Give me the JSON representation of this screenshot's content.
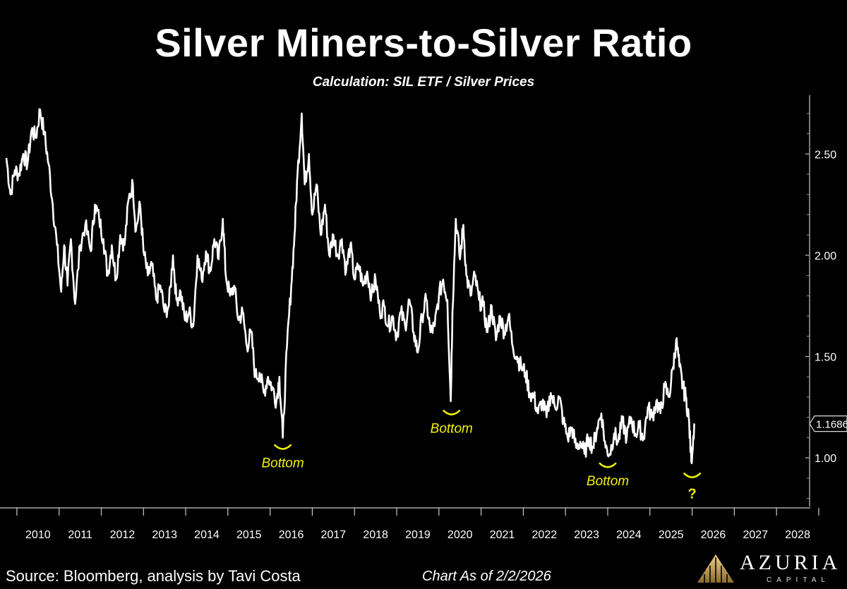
{
  "chart_data": {
    "type": "line",
    "title": "Silver Miners-to-Silver Ratio",
    "subtitle": "Calculation: SIL ETF / Silver Prices",
    "xlabel": "",
    "ylabel": "",
    "x_ticks": [
      "2010",
      "2011",
      "2012",
      "2013",
      "2014",
      "2015",
      "2016",
      "2017",
      "2018",
      "2019",
      "2020",
      "2021",
      "2022",
      "2023",
      "2024",
      "2025",
      "2026",
      "2027",
      "2028"
    ],
    "y_ticks": [
      "1.00",
      "1.50",
      "2.00",
      "2.50"
    ],
    "ylim": [
      0.76,
      2.79
    ],
    "xlim": [
      2009.6,
      2028.8
    ],
    "grid": false,
    "last_value_label": "1.1686",
    "series": [
      {
        "color": "#ffffff",
        "points": [
          [
            2009.75,
            2.48
          ],
          [
            2009.85,
            2.3
          ],
          [
            2009.95,
            2.42
          ],
          [
            2010.05,
            2.4
          ],
          [
            2010.15,
            2.5
          ],
          [
            2010.25,
            2.45
          ],
          [
            2010.35,
            2.62
          ],
          [
            2010.45,
            2.58
          ],
          [
            2010.55,
            2.72
          ],
          [
            2010.65,
            2.6
          ],
          [
            2010.75,
            2.45
          ],
          [
            2010.85,
            2.25
          ],
          [
            2010.95,
            2.05
          ],
          [
            2011.05,
            1.82
          ],
          [
            2011.12,
            2.05
          ],
          [
            2011.2,
            1.85
          ],
          [
            2011.28,
            2.08
          ],
          [
            2011.38,
            1.76
          ],
          [
            2011.5,
            2.05
          ],
          [
            2011.62,
            2.15
          ],
          [
            2011.75,
            2.02
          ],
          [
            2011.85,
            2.25
          ],
          [
            2011.95,
            2.18
          ],
          [
            2012.05,
            2.08
          ],
          [
            2012.15,
            1.9
          ],
          [
            2012.25,
            2.05
          ],
          [
            2012.35,
            1.88
          ],
          [
            2012.45,
            2.1
          ],
          [
            2012.55,
            2.05
          ],
          [
            2012.65,
            2.28
          ],
          [
            2012.75,
            2.35
          ],
          [
            2012.82,
            2.12
          ],
          [
            2012.92,
            2.25
          ],
          [
            2013.0,
            2.02
          ],
          [
            2013.1,
            1.9
          ],
          [
            2013.2,
            1.95
          ],
          [
            2013.3,
            1.78
          ],
          [
            2013.4,
            1.85
          ],
          [
            2013.5,
            1.72
          ],
          [
            2013.6,
            1.75
          ],
          [
            2013.7,
            2.0
          ],
          [
            2013.78,
            1.78
          ],
          [
            2013.88,
            1.82
          ],
          [
            2013.98,
            1.68
          ],
          [
            2014.08,
            1.72
          ],
          [
            2014.18,
            1.65
          ],
          [
            2014.28,
            2.0
          ],
          [
            2014.38,
            1.88
          ],
          [
            2014.48,
            2.02
          ],
          [
            2014.58,
            1.92
          ],
          [
            2014.68,
            2.08
          ],
          [
            2014.78,
            1.98
          ],
          [
            2014.88,
            2.18
          ],
          [
            2014.95,
            1.9
          ],
          [
            2015.05,
            1.8
          ],
          [
            2015.15,
            1.85
          ],
          [
            2015.25,
            1.68
          ],
          [
            2015.35,
            1.72
          ],
          [
            2015.45,
            1.55
          ],
          [
            2015.55,
            1.62
          ],
          [
            2015.65,
            1.4
          ],
          [
            2015.75,
            1.42
          ],
          [
            2015.85,
            1.32
          ],
          [
            2015.95,
            1.4
          ],
          [
            2016.05,
            1.35
          ],
          [
            2016.15,
            1.28
          ],
          [
            2016.22,
            1.4
          ],
          [
            2016.3,
            1.1
          ],
          [
            2016.4,
            1.55
          ],
          [
            2016.5,
            1.85
          ],
          [
            2016.58,
            2.1
          ],
          [
            2016.65,
            2.4
          ],
          [
            2016.75,
            2.7
          ],
          [
            2016.82,
            2.35
          ],
          [
            2016.92,
            2.5
          ],
          [
            2017.0,
            2.2
          ],
          [
            2017.1,
            2.35
          ],
          [
            2017.2,
            2.1
          ],
          [
            2017.3,
            2.25
          ],
          [
            2017.4,
            2.0
          ],
          [
            2017.5,
            2.1
          ],
          [
            2017.6,
            2.0
          ],
          [
            2017.7,
            2.08
          ],
          [
            2017.8,
            1.92
          ],
          [
            2017.9,
            2.05
          ],
          [
            2018.0,
            1.88
          ],
          [
            2018.1,
            1.95
          ],
          [
            2018.2,
            1.85
          ],
          [
            2018.3,
            1.92
          ],
          [
            2018.4,
            1.8
          ],
          [
            2018.5,
            1.88
          ],
          [
            2018.6,
            1.72
          ],
          [
            2018.7,
            1.75
          ],
          [
            2018.8,
            1.65
          ],
          [
            2018.9,
            1.7
          ],
          [
            2019.0,
            1.6
          ],
          [
            2019.1,
            1.72
          ],
          [
            2019.2,
            1.65
          ],
          [
            2019.3,
            1.78
          ],
          [
            2019.4,
            1.62
          ],
          [
            2019.5,
            1.52
          ],
          [
            2019.6,
            1.7
          ],
          [
            2019.7,
            1.78
          ],
          [
            2019.8,
            1.62
          ],
          [
            2019.9,
            1.65
          ],
          [
            2020.0,
            1.8
          ],
          [
            2020.1,
            1.88
          ],
          [
            2020.2,
            1.78
          ],
          [
            2020.28,
            1.28
          ],
          [
            2020.32,
            1.72
          ],
          [
            2020.4,
            2.18
          ],
          [
            2020.5,
            1.98
          ],
          [
            2020.58,
            2.15
          ],
          [
            2020.65,
            1.9
          ],
          [
            2020.75,
            1.8
          ],
          [
            2020.85,
            1.9
          ],
          [
            2020.95,
            1.78
          ],
          [
            2021.05,
            1.75
          ],
          [
            2021.15,
            1.62
          ],
          [
            2021.25,
            1.75
          ],
          [
            2021.35,
            1.58
          ],
          [
            2021.45,
            1.7
          ],
          [
            2021.55,
            1.62
          ],
          [
            2021.65,
            1.7
          ],
          [
            2021.75,
            1.55
          ],
          [
            2021.85,
            1.5
          ],
          [
            2021.95,
            1.45
          ],
          [
            2022.05,
            1.42
          ],
          [
            2022.15,
            1.32
          ],
          [
            2022.25,
            1.3
          ],
          [
            2022.35,
            1.22
          ],
          [
            2022.45,
            1.28
          ],
          [
            2022.55,
            1.2
          ],
          [
            2022.65,
            1.32
          ],
          [
            2022.75,
            1.25
          ],
          [
            2022.85,
            1.3
          ],
          [
            2022.95,
            1.18
          ],
          [
            2023.05,
            1.1
          ],
          [
            2023.15,
            1.15
          ],
          [
            2023.25,
            1.05
          ],
          [
            2023.35,
            1.08
          ],
          [
            2023.45,
            1.02
          ],
          [
            2023.55,
            1.1
          ],
          [
            2023.65,
            1.05
          ],
          [
            2023.75,
            1.15
          ],
          [
            2023.85,
            1.22
          ],
          [
            2023.95,
            1.05
          ],
          [
            2024.05,
            1.02
          ],
          [
            2024.15,
            1.12
          ],
          [
            2024.25,
            1.08
          ],
          [
            2024.35,
            1.18
          ],
          [
            2024.45,
            1.1
          ],
          [
            2024.55,
            1.2
          ],
          [
            2024.65,
            1.12
          ],
          [
            2024.75,
            1.15
          ],
          [
            2024.85,
            1.1
          ],
          [
            2024.95,
            1.25
          ],
          [
            2025.05,
            1.2
          ],
          [
            2025.15,
            1.28
          ],
          [
            2025.25,
            1.22
          ],
          [
            2025.35,
            1.35
          ],
          [
            2025.45,
            1.3
          ],
          [
            2025.55,
            1.45
          ],
          [
            2025.62,
            1.58
          ],
          [
            2025.7,
            1.45
          ],
          [
            2025.78,
            1.35
          ],
          [
            2025.85,
            1.3
          ],
          [
            2025.92,
            1.2
          ],
          [
            2025.98,
            0.98
          ],
          [
            2026.05,
            1.17
          ]
        ]
      }
    ],
    "annotations": [
      {
        "text": "Bottom",
        "x": 2016.3,
        "y": 1.1,
        "marker": "bottom-arc"
      },
      {
        "text": "Bottom",
        "x": 2020.3,
        "y": 1.27,
        "marker": "bottom-arc"
      },
      {
        "text": "Bottom",
        "x": 2024.0,
        "y": 1.01,
        "marker": "bottom-arc"
      },
      {
        "text": "?",
        "x": 2026.0,
        "y": 0.96,
        "marker": "bottom-arc"
      }
    ],
    "annotation_color": "#f2f200"
  },
  "footer": {
    "source": "Source: Bloomberg, analysis by Tavi Costa",
    "as_of": "Chart As of 2/2/2026"
  },
  "logo": {
    "name": "AZURIA",
    "sub": "CAPITAL"
  }
}
